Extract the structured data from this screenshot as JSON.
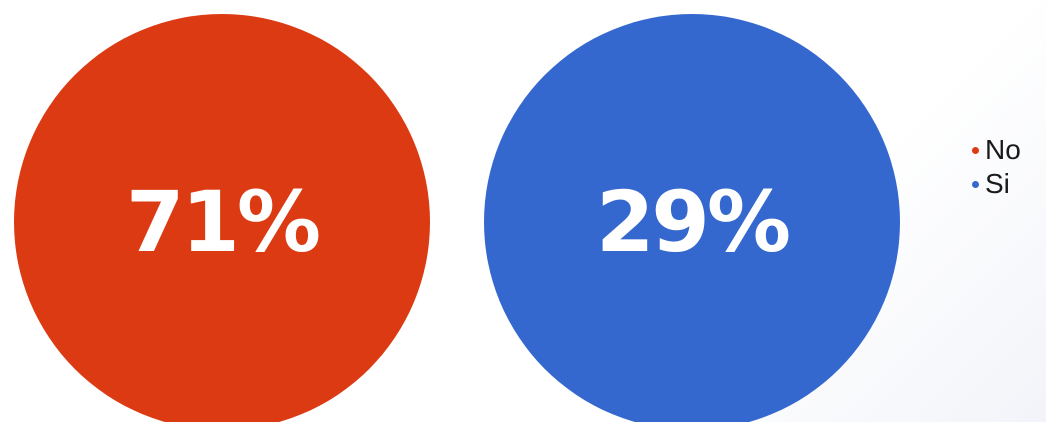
{
  "chart_data": {
    "type": "pie",
    "title": "",
    "slices": [
      {
        "label": "No",
        "value": 71,
        "display": "71%",
        "color": "#dc3a12"
      },
      {
        "label": "Si",
        "value": 29,
        "display": "29%",
        "color": "#3568cf"
      }
    ],
    "legend": {
      "position": "right",
      "entries": [
        "No",
        "Si"
      ]
    }
  }
}
